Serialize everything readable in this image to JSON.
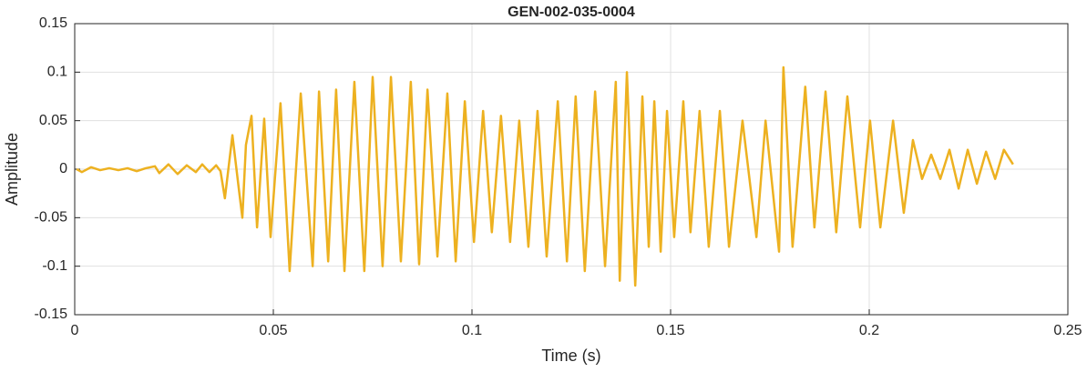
{
  "chart_data": {
    "type": "line",
    "title": "GEN-002-035-0004",
    "xlabel": "Time (s)",
    "ylabel": "Amplitude",
    "xlim": [
      0,
      0.25
    ],
    "ylim": [
      -0.15,
      0.15
    ],
    "xticks": [
      0,
      0.05,
      0.1,
      0.15,
      0.2,
      0.25
    ],
    "yticks": [
      0.15,
      0.1,
      0.05,
      0,
      -0.05,
      -0.1,
      -0.15
    ],
    "grid": true,
    "x": [
      0.0005,
      0.0018,
      0.0041,
      0.0064,
      0.0087,
      0.011,
      0.0133,
      0.0156,
      0.0179,
      0.0202,
      0.0213,
      0.0236,
      0.0259,
      0.0282,
      0.0305,
      0.0321,
      0.0339,
      0.0356,
      0.0367,
      0.0378,
      0.0397,
      0.0413,
      0.0422,
      0.0431,
      0.0445,
      0.0459,
      0.0477,
      0.0493,
      0.0518,
      0.0541,
      0.0569,
      0.0599,
      0.0615,
      0.0638,
      0.0658,
      0.0679,
      0.0704,
      0.0729,
      0.075,
      0.0775,
      0.0796,
      0.0821,
      0.0846,
      0.0867,
      0.0888,
      0.0913,
      0.0938,
      0.0959,
      0.0982,
      0.1005,
      0.1028,
      0.105,
      0.1073,
      0.1096,
      0.1119,
      0.1142,
      0.1165,
      0.1188,
      0.1216,
      0.1239,
      0.1261,
      0.1284,
      0.131,
      0.1335,
      0.1362,
      0.1372,
      0.139,
      0.1411,
      0.1429,
      0.1445,
      0.1459,
      0.1475,
      0.1491,
      0.1509,
      0.1532,
      0.155,
      0.1573,
      0.1596,
      0.1624,
      0.1647,
      0.1681,
      0.1716,
      0.1739,
      0.1773,
      0.1784,
      0.1807,
      0.1839,
      0.1862,
      0.189,
      0.1917,
      0.1945,
      0.1977,
      0.2002,
      0.2028,
      0.206,
      0.2087,
      0.211,
      0.2133,
      0.2156,
      0.2179,
      0.2202,
      0.2225,
      0.2248,
      0.2271,
      0.2294,
      0.2317,
      0.2339,
      0.2362
    ],
    "series": [
      {
        "color": "#EDB120",
        "values": [
          0,
          -0.003,
          0.002,
          -0.001,
          0.001,
          -0.001,
          0.001,
          -0.002,
          0.001,
          0.003,
          -0.004,
          0.005,
          -0.005,
          0.004,
          -0.003,
          0.005,
          -0.003,
          0.004,
          -0.002,
          -0.03,
          0.035,
          -0.02,
          -0.05,
          0.025,
          0.055,
          -0.06,
          0.052,
          -0.07,
          0.068,
          -0.105,
          0.078,
          -0.1,
          0.08,
          -0.095,
          0.082,
          -0.105,
          0.09,
          -0.105,
          0.095,
          -0.1,
          0.095,
          -0.095,
          0.09,
          -0.098,
          0.082,
          -0.09,
          0.078,
          -0.095,
          0.07,
          -0.075,
          0.06,
          -0.065,
          0.055,
          -0.075,
          0.05,
          -0.08,
          0.06,
          -0.09,
          0.07,
          -0.095,
          0.075,
          -0.105,
          0.08,
          -0.1,
          0.09,
          -0.115,
          0.1,
          -0.12,
          0.075,
          -0.08,
          0.07,
          -0.085,
          0.06,
          -0.07,
          0.07,
          -0.065,
          0.06,
          -0.08,
          0.06,
          -0.08,
          0.05,
          -0.07,
          0.05,
          -0.085,
          0.105,
          -0.08,
          0.085,
          -0.06,
          0.08,
          -0.065,
          0.075,
          -0.06,
          0.05,
          -0.06,
          0.05,
          -0.045,
          0.03,
          -0.01,
          0.015,
          -0.01,
          0.02,
          -0.02,
          0.02,
          -0.015,
          0.018,
          -0.01,
          0.02,
          0.005
        ]
      }
    ]
  }
}
